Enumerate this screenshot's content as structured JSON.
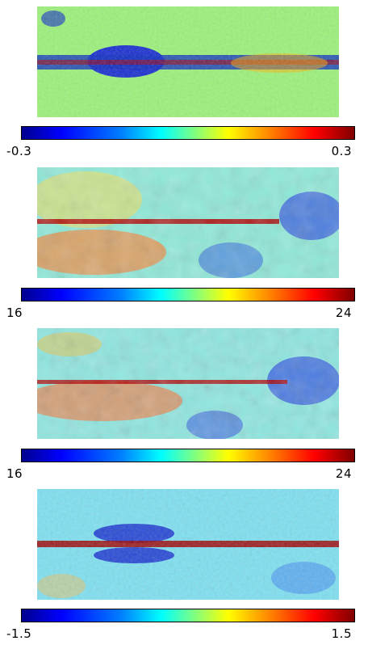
{
  "panels": [
    {
      "id": "p1",
      "colorbar": {
        "min_label": "-0.3",
        "max_label": "0.3"
      },
      "base_color": "#9cf27a",
      "band_color": "#1020a0"
    },
    {
      "id": "p2",
      "colorbar": {
        "min_label": "16",
        "max_label": "24"
      },
      "base_color": "#8fe9d8",
      "band_color": "#b00000"
    },
    {
      "id": "p3",
      "colorbar": {
        "min_label": "16",
        "max_label": "24"
      },
      "base_color": "#8fe6e0",
      "band_color": "#b00000"
    },
    {
      "id": "p4",
      "colorbar": {
        "min_label": "-1.5",
        "max_label": "1.5"
      },
      "base_color": "#7fe0f0",
      "band_color": "#a00000"
    }
  ]
}
